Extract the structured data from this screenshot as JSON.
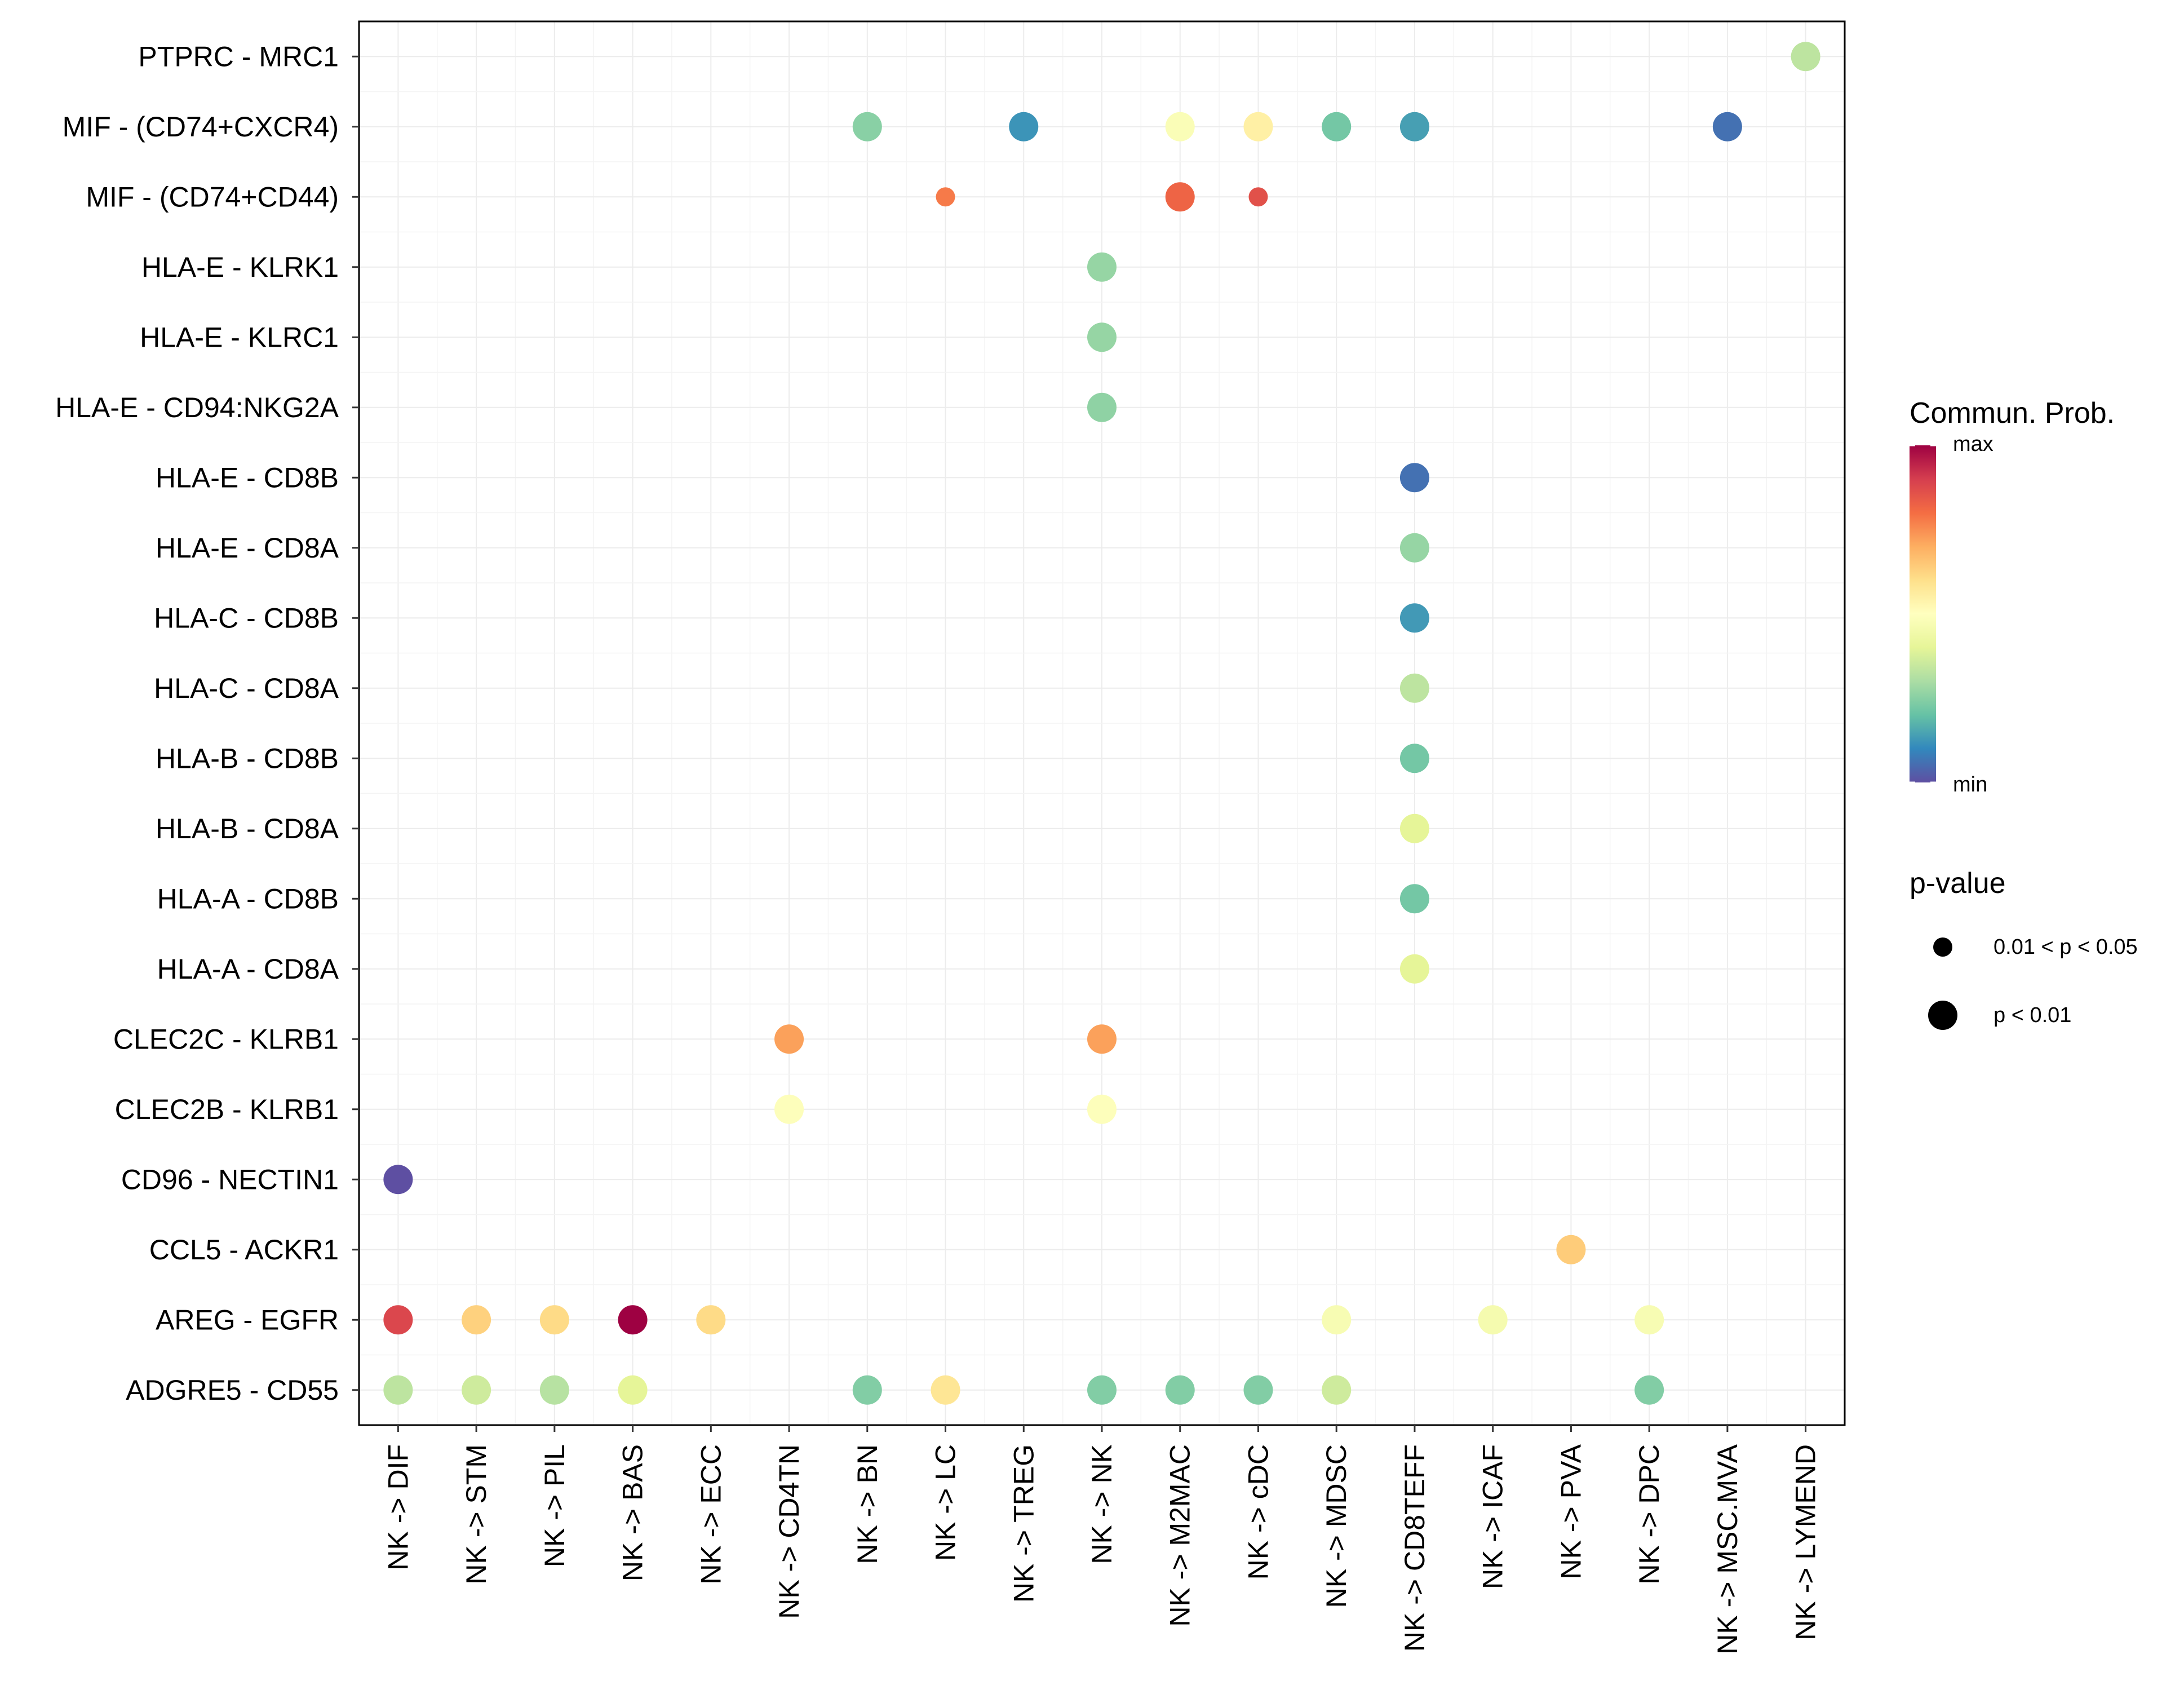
{
  "chart_data": {
    "type": "scatter",
    "subtype": "dot-plot",
    "title": "",
    "xlabel": "",
    "ylabel": "",
    "grid": true,
    "x_categories": [
      "NK -> DIF",
      "NK -> STM",
      "NK -> PIL",
      "NK -> BAS",
      "NK -> ECC",
      "NK -> CD4TN",
      "NK -> BN",
      "NK -> LC",
      "NK -> TREG",
      "NK -> NK",
      "NK -> M2MAC",
      "NK -> cDC",
      "NK -> MDSC",
      "NK -> CD8TEFF",
      "NK -> ICAF",
      "NK -> PVA",
      "NK -> DPC",
      "NK -> MSC.MVA",
      "NK -> LYMEND"
    ],
    "y_categories": [
      "PTPRC - MRC1",
      "MIF - (CD74+CXCR4)",
      "MIF - (CD74+CD44)",
      "HLA-E - KLRK1",
      "HLA-E - KLRC1",
      "HLA-E - CD94:NKG2A",
      "HLA-E - CD8B",
      "HLA-E - CD8A",
      "HLA-C - CD8B",
      "HLA-C - CD8A",
      "HLA-B - CD8B",
      "HLA-B - CD8A",
      "HLA-A - CD8B",
      "HLA-A - CD8A",
      "CLEC2C - KLRB1",
      "CLEC2B - KLRB1",
      "CD96 - NECTIN1",
      "CCL5 - ACKR1",
      "AREG - EGFR",
      "ADGRE5 - CD55"
    ],
    "points": [
      {
        "y": "PTPRC - MRC1",
        "x": "NK -> LYMEND",
        "prob": 0.33,
        "pval": "p < 0.01"
      },
      {
        "y": "MIF - (CD74+CXCR4)",
        "x": "NK -> BN",
        "prob": 0.25,
        "pval": "p < 0.01"
      },
      {
        "y": "MIF - (CD74+CXCR4)",
        "x": "NK -> TREG",
        "prob": 0.12,
        "pval": "p < 0.01"
      },
      {
        "y": "MIF - (CD74+CXCR4)",
        "x": "NK -> M2MAC",
        "prob": 0.48,
        "pval": "p < 0.01"
      },
      {
        "y": "MIF - (CD74+CXCR4)",
        "x": "NK -> cDC",
        "prob": 0.55,
        "pval": "p < 0.01"
      },
      {
        "y": "MIF - (CD74+CXCR4)",
        "x": "NK -> MDSC",
        "prob": 0.22,
        "pval": "p < 0.01"
      },
      {
        "y": "MIF - (CD74+CXCR4)",
        "x": "NK -> CD8TEFF",
        "prob": 0.14,
        "pval": "p < 0.01"
      },
      {
        "y": "MIF - (CD74+CXCR4)",
        "x": "NK -> MSC.MVA",
        "prob": 0.06,
        "pval": "p < 0.01"
      },
      {
        "y": "MIF - (CD74+CD44)",
        "x": "NK -> LC",
        "prob": 0.78,
        "pval": "0.01 < p < 0.05"
      },
      {
        "y": "MIF - (CD74+CD44)",
        "x": "NK -> M2MAC",
        "prob": 0.82,
        "pval": "p < 0.01"
      },
      {
        "y": "MIF - (CD74+CD44)",
        "x": "NK -> cDC",
        "prob": 0.86,
        "pval": "0.01 < p < 0.05"
      },
      {
        "y": "HLA-E - KLRK1",
        "x": "NK -> NK",
        "prob": 0.27,
        "pval": "p < 0.01"
      },
      {
        "y": "HLA-E - KLRC1",
        "x": "NK -> NK",
        "prob": 0.27,
        "pval": "p < 0.01"
      },
      {
        "y": "HLA-E - CD94:NKG2A",
        "x": "NK -> NK",
        "prob": 0.26,
        "pval": "p < 0.01"
      },
      {
        "y": "HLA-E - CD8B",
        "x": "NK -> CD8TEFF",
        "prob": 0.06,
        "pval": "p < 0.01"
      },
      {
        "y": "HLA-E - CD8A",
        "x": "NK -> CD8TEFF",
        "prob": 0.27,
        "pval": "p < 0.01"
      },
      {
        "y": "HLA-C - CD8B",
        "x": "NK -> CD8TEFF",
        "prob": 0.13,
        "pval": "p < 0.01"
      },
      {
        "y": "HLA-C - CD8A",
        "x": "NK -> CD8TEFF",
        "prob": 0.33,
        "pval": "p < 0.01"
      },
      {
        "y": "HLA-B - CD8B",
        "x": "NK -> CD8TEFF",
        "prob": 0.22,
        "pval": "p < 0.01"
      },
      {
        "y": "HLA-B - CD8A",
        "x": "NK -> CD8TEFF",
        "prob": 0.4,
        "pval": "p < 0.01"
      },
      {
        "y": "HLA-A - CD8B",
        "x": "NK -> CD8TEFF",
        "prob": 0.22,
        "pval": "p < 0.01"
      },
      {
        "y": "HLA-A - CD8A",
        "x": "NK -> CD8TEFF",
        "prob": 0.4,
        "pval": "p < 0.01"
      },
      {
        "y": "CLEC2C - KLRB1",
        "x": "NK -> CD4TN",
        "prob": 0.72,
        "pval": "p < 0.01"
      },
      {
        "y": "CLEC2C - KLRB1",
        "x": "NK -> NK",
        "prob": 0.72,
        "pval": "p < 0.01"
      },
      {
        "y": "CLEC2B - KLRB1",
        "x": "NK -> CD4TN",
        "prob": 0.49,
        "pval": "p < 0.01"
      },
      {
        "y": "CLEC2B - KLRB1",
        "x": "NK -> NK",
        "prob": 0.49,
        "pval": "p < 0.01"
      },
      {
        "y": "CD96 - NECTIN1",
        "x": "NK -> DIF",
        "prob": 0.0,
        "pval": "p < 0.01"
      },
      {
        "y": "CCL5 - ACKR1",
        "x": "NK -> PVA",
        "prob": 0.64,
        "pval": "p < 0.01"
      },
      {
        "y": "AREG - EGFR",
        "x": "NK -> DIF",
        "prob": 0.88,
        "pval": "p < 0.01"
      },
      {
        "y": "AREG - EGFR",
        "x": "NK -> STM",
        "prob": 0.63,
        "pval": "p < 0.01"
      },
      {
        "y": "AREG - EGFR",
        "x": "NK -> PIL",
        "prob": 0.61,
        "pval": "p < 0.01"
      },
      {
        "y": "AREG - EGFR",
        "x": "NK -> BAS",
        "prob": 1.0,
        "pval": "p < 0.01"
      },
      {
        "y": "AREG - EGFR",
        "x": "NK -> ECC",
        "prob": 0.61,
        "pval": "p < 0.01"
      },
      {
        "y": "AREG - EGFR",
        "x": "NK -> MDSC",
        "prob": 0.47,
        "pval": "p < 0.01"
      },
      {
        "y": "AREG - EGFR",
        "x": "NK -> ICAF",
        "prob": 0.46,
        "pval": "p < 0.01"
      },
      {
        "y": "AREG - EGFR",
        "x": "NK -> DPC",
        "prob": 0.47,
        "pval": "p < 0.01"
      },
      {
        "y": "ADGRE5 - CD55",
        "x": "NK -> DIF",
        "prob": 0.33,
        "pval": "p < 0.01"
      },
      {
        "y": "ADGRE5 - CD55",
        "x": "NK -> STM",
        "prob": 0.36,
        "pval": "p < 0.01"
      },
      {
        "y": "ADGRE5 - CD55",
        "x": "NK -> PIL",
        "prob": 0.32,
        "pval": "p < 0.01"
      },
      {
        "y": "ADGRE5 - CD55",
        "x": "NK -> BAS",
        "prob": 0.4,
        "pval": "p < 0.01"
      },
      {
        "y": "ADGRE5 - CD55",
        "x": "NK -> BN",
        "prob": 0.24,
        "pval": "p < 0.01"
      },
      {
        "y": "ADGRE5 - CD55",
        "x": "NK -> LC",
        "prob": 0.58,
        "pval": "p < 0.01"
      },
      {
        "y": "ADGRE5 - CD55",
        "x": "NK -> NK",
        "prob": 0.24,
        "pval": "p < 0.01"
      },
      {
        "y": "ADGRE5 - CD55",
        "x": "NK -> M2MAC",
        "prob": 0.24,
        "pval": "p < 0.01"
      },
      {
        "y": "ADGRE5 - CD55",
        "x": "NK -> cDC",
        "prob": 0.24,
        "pval": "p < 0.01"
      },
      {
        "y": "ADGRE5 - CD55",
        "x": "NK -> MDSC",
        "prob": 0.36,
        "pval": "p < 0.01"
      },
      {
        "y": "ADGRE5 - CD55",
        "x": "NK -> DPC",
        "prob": 0.24,
        "pval": "p < 0.01"
      }
    ],
    "color_legend": {
      "title": "Commun. Prob.",
      "max_label": "max",
      "min_label": "min",
      "colors": [
        "#5E4FA2",
        "#3288BD",
        "#66C2A5",
        "#ABDDA4",
        "#E6F598",
        "#FFFFBF",
        "#FEE08B",
        "#FDAE61",
        "#F46D43",
        "#D53E4F",
        "#9E0142"
      ]
    },
    "size_legend": {
      "title": "p-value",
      "items": [
        {
          "label": "0.01 < p < 0.05",
          "key": "0.01 < p < 0.05"
        },
        {
          "label": "p < 0.01",
          "key": "p < 0.01"
        }
      ]
    }
  }
}
